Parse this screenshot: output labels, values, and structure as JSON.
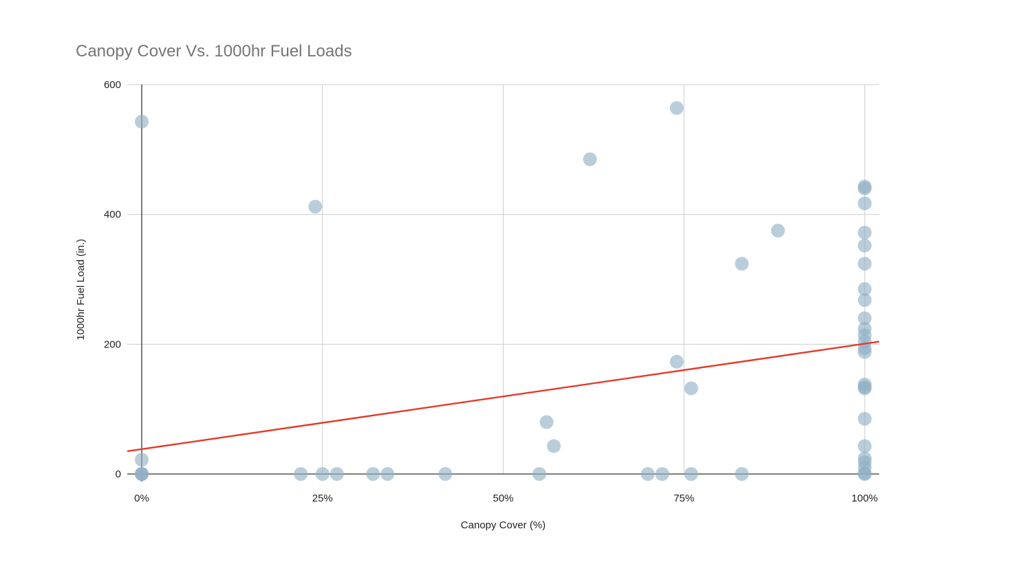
{
  "chart_data": {
    "type": "scatter",
    "title": "Canopy Cover Vs. 1000hr Fuel Loads",
    "xlabel": "Canopy Cover (%)",
    "ylabel": "1000hr Fuel Load (in.)",
    "xlim": [
      -0.02,
      1.02
    ],
    "ylim": [
      0,
      600
    ],
    "x_ticks": [
      0,
      0.25,
      0.5,
      0.75,
      1.0
    ],
    "x_tick_labels": [
      "0%",
      "25%",
      "50%",
      "75%",
      "100%"
    ],
    "y_ticks": [
      0,
      200,
      400,
      600
    ],
    "y_tick_labels": [
      "0",
      "200",
      "400",
      "600"
    ],
    "grid": true,
    "legend": "none",
    "colors": {
      "point": "#8faec5",
      "trendline": "#e33a2a",
      "title": "#757575",
      "grid": "#cccccc",
      "axis": "#333333"
    },
    "series": [
      {
        "points": [
          [
            0,
            543
          ],
          [
            0,
            22
          ],
          [
            0,
            0
          ],
          [
            0,
            0
          ],
          [
            0,
            0
          ],
          [
            0.22,
            0
          ],
          [
            0.24,
            412
          ],
          [
            0.25,
            0
          ],
          [
            0.27,
            0
          ],
          [
            0.32,
            0
          ],
          [
            0.34,
            0
          ],
          [
            0.42,
            0
          ],
          [
            0.55,
            0
          ],
          [
            0.56,
            80
          ],
          [
            0.57,
            43
          ],
          [
            0.62,
            485
          ],
          [
            0.7,
            0
          ],
          [
            0.72,
            0
          ],
          [
            0.74,
            564
          ],
          [
            0.74,
            173
          ],
          [
            0.76,
            132
          ],
          [
            0.76,
            0
          ],
          [
            0.83,
            324
          ],
          [
            0.83,
            0
          ],
          [
            0.88,
            375
          ],
          [
            1,
            443
          ],
          [
            1,
            440
          ],
          [
            1,
            417
          ],
          [
            1,
            372
          ],
          [
            1,
            352
          ],
          [
            1,
            324
          ],
          [
            1,
            285
          ],
          [
            1,
            268
          ],
          [
            1,
            240
          ],
          [
            1,
            224
          ],
          [
            1,
            214
          ],
          [
            1,
            204
          ],
          [
            1,
            194
          ],
          [
            1,
            188
          ],
          [
            1,
            138
          ],
          [
            1,
            134
          ],
          [
            1,
            132
          ],
          [
            1,
            85
          ],
          [
            1,
            43
          ],
          [
            1,
            24
          ],
          [
            1,
            18
          ],
          [
            1,
            10
          ],
          [
            1,
            1
          ],
          [
            1,
            0
          ]
        ]
      }
    ],
    "trendline": {
      "type": "linear",
      "x": [
        -0.02,
        1.02
      ],
      "y": [
        35,
        204
      ]
    }
  }
}
